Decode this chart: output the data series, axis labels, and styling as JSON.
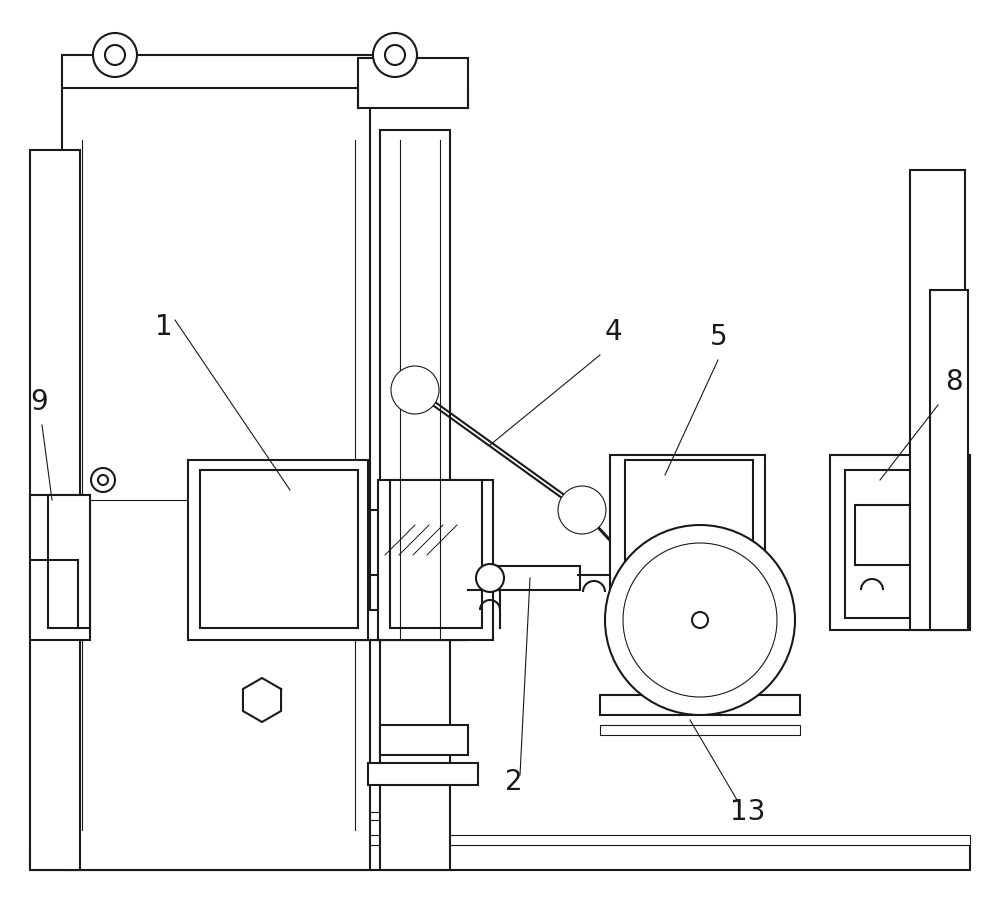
{
  "bg_color": "#ffffff",
  "line_color": "#1a1a1a",
  "lw": 1.5,
  "tlw": 0.8,
  "figsize": [
    10.0,
    9.22
  ],
  "dpi": 100
}
